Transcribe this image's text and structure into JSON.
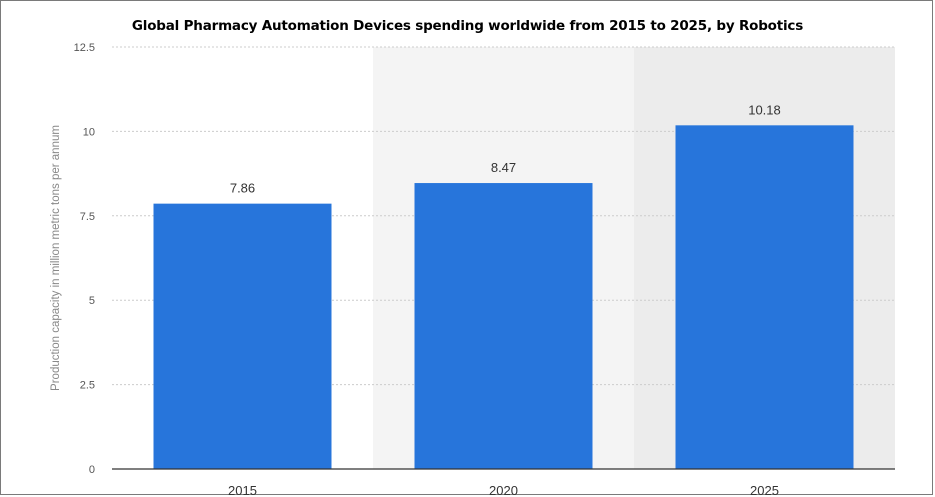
{
  "chart_data": {
    "type": "bar",
    "title": "Global Pharmacy Automation Devices spending worldwide from 2015 to 2025, by Robotics",
    "xlabel": "",
    "ylabel": "Production capacity in million metric tons per annum",
    "categories": [
      "2015",
      "2020",
      "2025"
    ],
    "values": [
      7.86,
      8.47,
      10.18
    ],
    "value_labels": [
      "7.86",
      "8.47",
      "10.18"
    ],
    "ylim": [
      0,
      12.5
    ],
    "yticks": [
      0,
      2.5,
      5,
      7.5,
      10,
      12.5
    ],
    "ytick_labels": [
      "0",
      "2.5",
      "5",
      "7.5",
      "10",
      "12.5"
    ],
    "grid": true,
    "bar_color": "#2775db"
  }
}
